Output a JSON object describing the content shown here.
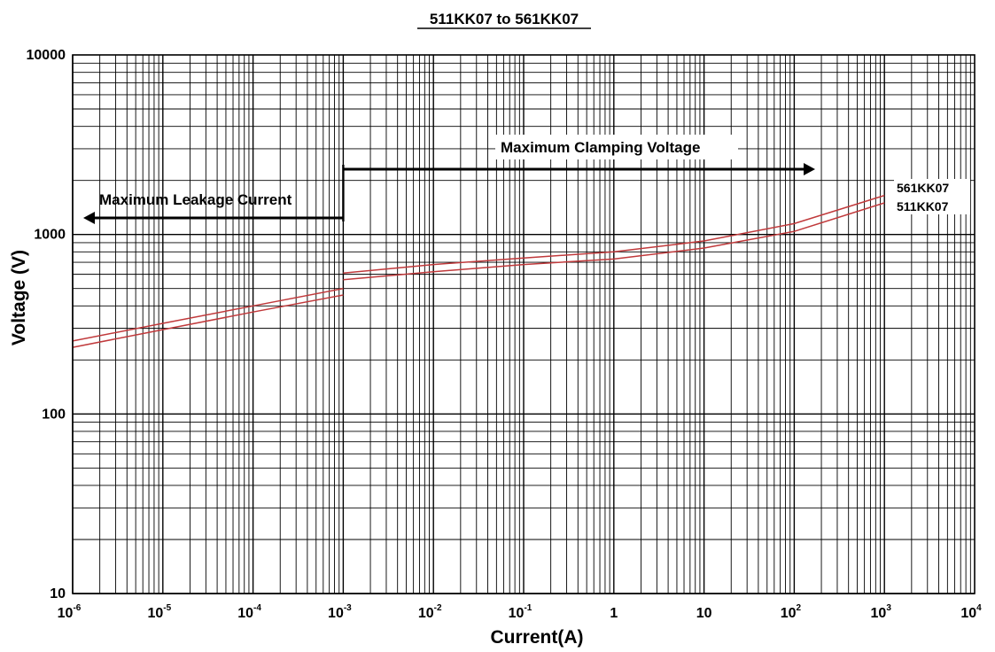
{
  "chart_data": {
    "type": "line",
    "title": "511KK07 to 561KK07",
    "xlabel": "Current(A)",
    "ylabel": "Voltage (V)",
    "xscale": "log",
    "yscale": "log",
    "xlim": [
      1e-06,
      10000
    ],
    "ylim": [
      10,
      10000
    ],
    "grid": true,
    "x_ticks": [
      {
        "base": "10",
        "exp": "-6"
      },
      {
        "base": "10",
        "exp": "-5"
      },
      {
        "base": "10",
        "exp": "-4"
      },
      {
        "base": "10",
        "exp": "-3"
      },
      {
        "base": "10",
        "exp": "-2"
      },
      {
        "base": "10",
        "exp": "-1"
      },
      {
        "base": "1",
        "exp": ""
      },
      {
        "base": "10",
        "exp": ""
      },
      {
        "base": "10",
        "exp": "2"
      },
      {
        "base": "10",
        "exp": "3"
      },
      {
        "base": "10",
        "exp": "4"
      }
    ],
    "y_ticks": [
      "10",
      "100",
      "1000",
      "10000"
    ],
    "annotations": [
      {
        "text": "Maximum Leakage Current",
        "arrow": "left"
      },
      {
        "text": "Maximum Clamping Voltage",
        "arrow": "right"
      }
    ],
    "series": [
      {
        "name": "561KK07",
        "color": "#c0393b",
        "segments": [
          {
            "x": [
              1e-06,
              1e-05,
              0.0001,
              0.001
            ],
            "y": [
              255,
              320,
              400,
              500
            ]
          },
          {
            "x": [
              0.001,
              0.01,
              0.1,
              1,
              10,
              100,
              1000
            ],
            "y": [
              610,
              680,
              740,
              800,
              920,
              1150,
              1650
            ]
          }
        ]
      },
      {
        "name": "511KK07",
        "color": "#c0393b",
        "segments": [
          {
            "x": [
              1e-06,
              1e-05,
              0.0001,
              0.001
            ],
            "y": [
              235,
              295,
              370,
              460
            ]
          },
          {
            "x": [
              0.001,
              0.01,
              0.1,
              1,
              10,
              100,
              1000
            ],
            "y": [
              560,
              620,
              680,
              730,
              840,
              1040,
              1500
            ]
          }
        ]
      }
    ]
  }
}
